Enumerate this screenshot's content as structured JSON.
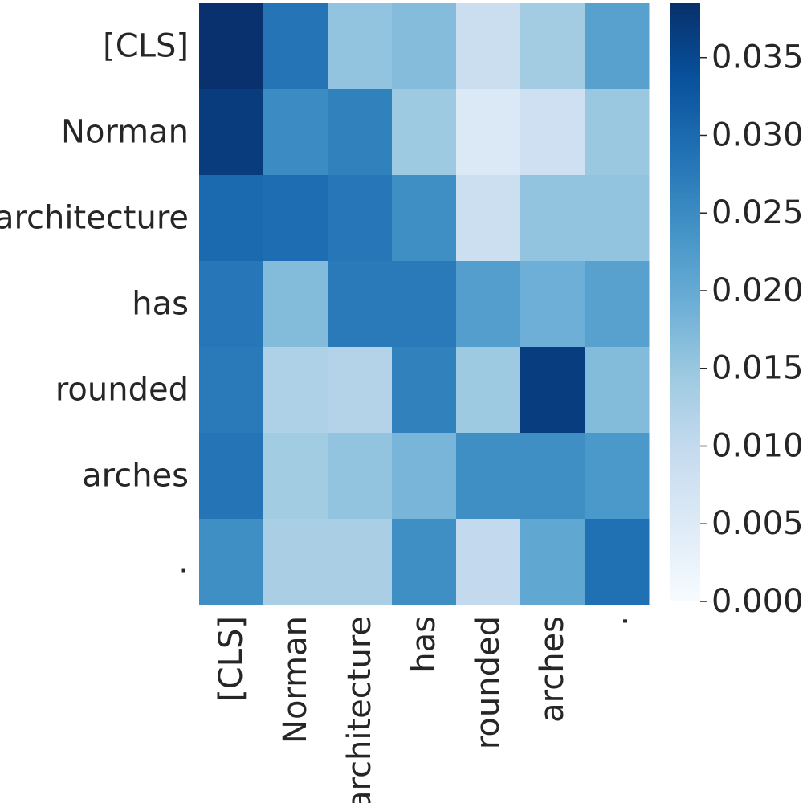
{
  "chart_data": {
    "type": "heatmap",
    "title": "",
    "xlabel": "",
    "ylabel": "",
    "x_labels": [
      "[CLS]",
      "Norman",
      "architecture",
      "has",
      "rounded",
      "arches",
      "."
    ],
    "y_labels": [
      "[CLS]",
      "Norman",
      "architecture",
      "has",
      "rounded",
      "arches",
      "."
    ],
    "values": [
      [
        0.0383,
        0.0285,
        0.0155,
        0.0168,
        0.0088,
        0.0138,
        0.0215
      ],
      [
        0.0368,
        0.025,
        0.0265,
        0.0145,
        0.0055,
        0.008,
        0.0148
      ],
      [
        0.03,
        0.0295,
        0.028,
        0.0245,
        0.0085,
        0.0155,
        0.0155
      ],
      [
        0.028,
        0.017,
        0.0275,
        0.0275,
        0.022,
        0.019,
        0.0215
      ],
      [
        0.0275,
        0.0125,
        0.0118,
        0.0265,
        0.0145,
        0.0365,
        0.017
      ],
      [
        0.0285,
        0.014,
        0.0155,
        0.018,
        0.0245,
        0.0245,
        0.023
      ],
      [
        0.0245,
        0.013,
        0.013,
        0.0245,
        0.01,
        0.0205,
        0.029
      ]
    ],
    "colorscale": "Blues",
    "colorbar": {
      "range": [
        0,
        0.0385
      ],
      "ticks": [
        0.0,
        0.005,
        0.01,
        0.015,
        0.02,
        0.025,
        0.03,
        0.035
      ],
      "tick_labels": [
        "0.000",
        "0.005",
        "0.010",
        "0.015",
        "0.020",
        "0.025",
        "0.030",
        "0.035"
      ]
    },
    "grid": false
  }
}
